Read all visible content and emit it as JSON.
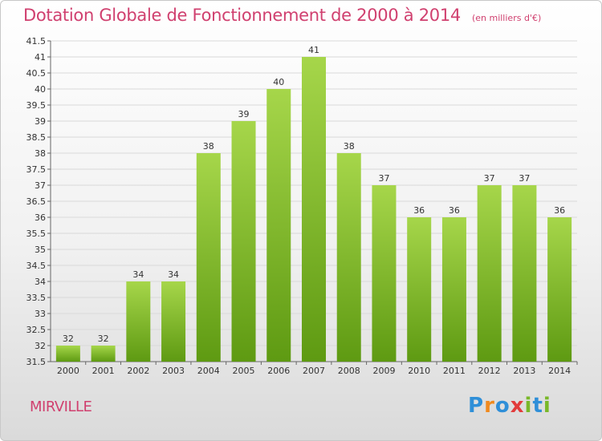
{
  "title": "Dotation Globale de Fonctionnement de 2000 à 2014",
  "unit_note": "(en milliers d'€)",
  "town": "MIRVILLE",
  "logo_text": "Proxiti",
  "colors": {
    "title": "#d0406f",
    "bar_top": "#a6d64a",
    "bar_bottom": "#5e9a12",
    "grid": "#d9d9d9",
    "axis_text": "#333333"
  },
  "chart_data": {
    "type": "bar",
    "title": "Dotation Globale de Fonctionnement de 2000 à 2014",
    "subtitle": "(en milliers d'€)",
    "xlabel": "",
    "ylabel": "",
    "categories": [
      "2000",
      "2001",
      "2002",
      "2003",
      "2004",
      "2005",
      "2006",
      "2007",
      "2008",
      "2009",
      "2010",
      "2011",
      "2012",
      "2013",
      "2014"
    ],
    "values": [
      32,
      32,
      34,
      34,
      38,
      39,
      40,
      41,
      38,
      37,
      36,
      36,
      37,
      37,
      36
    ],
    "value_labels": [
      "32",
      "32",
      "34",
      "34",
      "38",
      "39",
      "40",
      "41",
      "38",
      "37",
      "36",
      "36",
      "37",
      "37",
      "36"
    ],
    "ylim": [
      31.5,
      41.5
    ],
    "yticks": [
      "31.5",
      "32",
      "32.5",
      "33",
      "33.5",
      "34",
      "34.5",
      "35",
      "35.5",
      "36",
      "36.5",
      "37",
      "37.5",
      "38",
      "38.5",
      "39",
      "39.5",
      "40",
      "40.5",
      "41",
      "41.5"
    ],
    "grid": true,
    "legend": "none"
  }
}
